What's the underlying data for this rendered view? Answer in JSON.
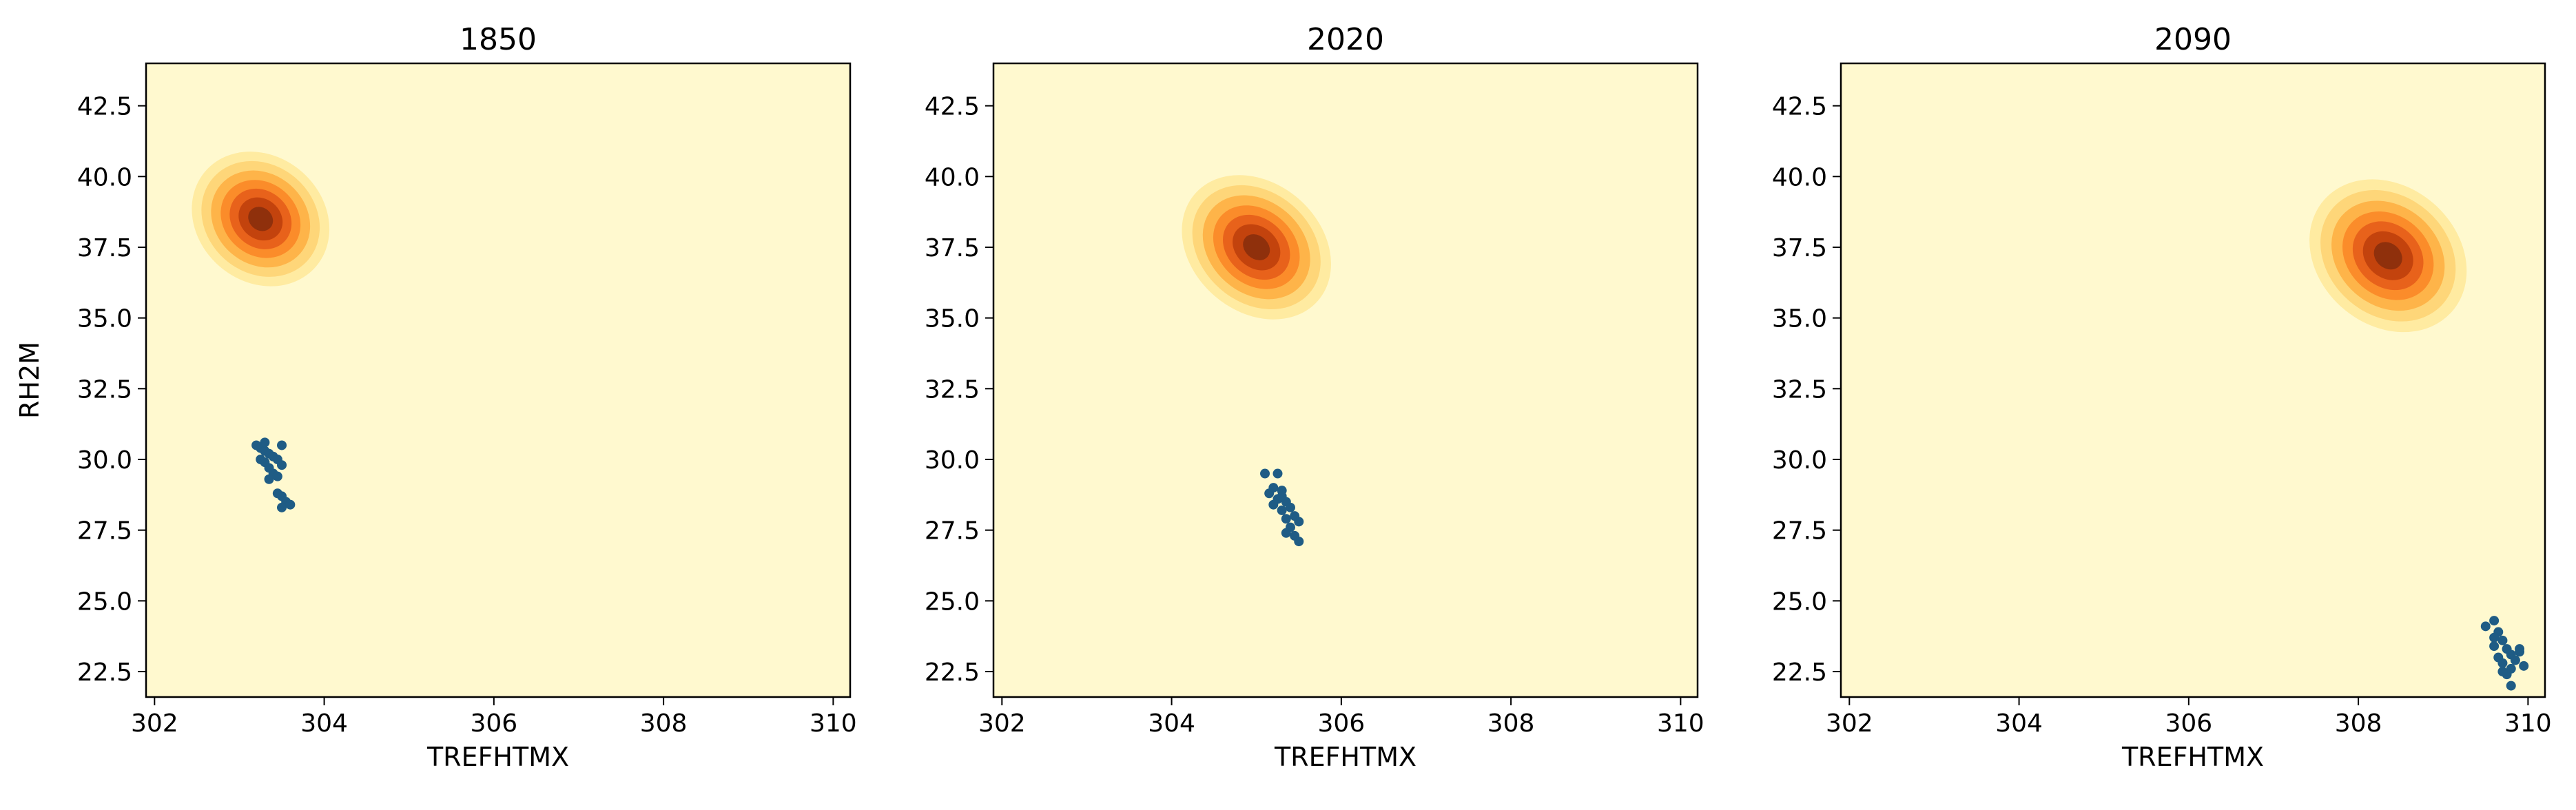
{
  "colors": {
    "background": "#fff9cf",
    "density_levels": [
      "#fff9cf",
      "#ffeba1",
      "#fed679",
      "#feb449",
      "#fb8c2a",
      "#e8621b",
      "#c3430d",
      "#8f300c"
    ],
    "points": "#1f5c85"
  },
  "chart_data": [
    {
      "type": "scatter",
      "title": "1850",
      "xlabel": "TREFHTMX",
      "ylabel": "RH2M",
      "xlim": [
        301.9,
        310.2
      ],
      "ylim": [
        21.6,
        44.0
      ],
      "xticks": [
        "302",
        "304",
        "306",
        "308",
        "310"
      ],
      "yticks": [
        "22.5",
        "25.0",
        "27.5",
        "30.0",
        "32.5",
        "35.0",
        "37.5",
        "40.0",
        "42.5"
      ],
      "density": {
        "center": [
          303.25,
          38.5
        ],
        "spread_major": 4.3,
        "spread_minor": 0.42,
        "orientation": "upper-left to lower-right"
      },
      "points": [
        [
          303.2,
          30.5
        ],
        [
          303.25,
          30.4
        ],
        [
          303.3,
          30.3
        ],
        [
          303.35,
          30.2
        ],
        [
          303.25,
          30.0
        ],
        [
          303.4,
          30.1
        ],
        [
          303.3,
          29.9
        ],
        [
          303.45,
          30.0
        ],
        [
          303.35,
          29.7
        ],
        [
          303.5,
          29.8
        ],
        [
          303.4,
          29.5
        ],
        [
          303.45,
          29.4
        ],
        [
          303.35,
          29.3
        ],
        [
          303.5,
          30.5
        ],
        [
          303.5,
          28.7
        ],
        [
          303.55,
          28.5
        ],
        [
          303.6,
          28.4
        ],
        [
          303.5,
          28.3
        ],
        [
          303.45,
          28.8
        ],
        [
          303.3,
          30.6
        ]
      ]
    },
    {
      "type": "scatter",
      "title": "2020",
      "xlabel": "TREFHTMX",
      "ylabel": "",
      "xlim": [
        301.9,
        310.2
      ],
      "ylim": [
        21.6,
        44.0
      ],
      "xticks": [
        "302",
        "304",
        "306",
        "308",
        "310"
      ],
      "yticks": [
        "22.5",
        "25.0",
        "27.5",
        "30.0",
        "32.5",
        "35.0",
        "37.5",
        "40.0",
        "42.5"
      ],
      "density": {
        "center": [
          305.0,
          37.5
        ],
        "spread_major": 4.8,
        "spread_minor": 0.45,
        "orientation": "upper-left to lower-right"
      },
      "points": [
        [
          305.1,
          29.5
        ],
        [
          305.25,
          29.5
        ],
        [
          305.2,
          29.0
        ],
        [
          305.15,
          28.8
        ],
        [
          305.3,
          28.9
        ],
        [
          305.25,
          28.6
        ],
        [
          305.35,
          28.5
        ],
        [
          305.2,
          28.4
        ],
        [
          305.4,
          28.3
        ],
        [
          305.3,
          28.2
        ],
        [
          305.45,
          28.0
        ],
        [
          305.35,
          27.9
        ],
        [
          305.5,
          27.8
        ],
        [
          305.4,
          27.6
        ],
        [
          305.35,
          27.4
        ],
        [
          305.45,
          27.3
        ],
        [
          305.5,
          27.1
        ],
        [
          305.3,
          28.7
        ]
      ]
    },
    {
      "type": "scatter",
      "title": "2090",
      "xlabel": "TREFHTMX",
      "ylabel": "",
      "xlim": [
        301.9,
        310.2
      ],
      "ylim": [
        21.6,
        44.0
      ],
      "xticks": [
        "302",
        "304",
        "306",
        "308",
        "310"
      ],
      "yticks": [
        "22.5",
        "25.0",
        "27.5",
        "30.0",
        "32.5",
        "35.0",
        "37.5",
        "40.0",
        "42.5"
      ],
      "density": {
        "center": [
          308.35,
          37.2
        ],
        "spread_major": 5.0,
        "spread_minor": 0.55,
        "orientation": "upper-left to lower-right"
      },
      "points": [
        [
          309.5,
          24.1
        ],
        [
          309.6,
          24.3
        ],
        [
          309.65,
          23.9
        ],
        [
          309.7,
          23.6
        ],
        [
          309.6,
          23.4
        ],
        [
          309.75,
          23.3
        ],
        [
          309.8,
          23.1
        ],
        [
          309.65,
          23.0
        ],
        [
          309.9,
          23.2
        ],
        [
          309.85,
          22.9
        ],
        [
          309.7,
          22.8
        ],
        [
          309.8,
          22.6
        ],
        [
          309.95,
          22.7
        ],
        [
          309.75,
          22.4
        ],
        [
          309.8,
          22.0
        ],
        [
          309.9,
          23.3
        ],
        [
          309.6,
          23.7
        ],
        [
          309.7,
          22.5
        ]
      ]
    }
  ]
}
